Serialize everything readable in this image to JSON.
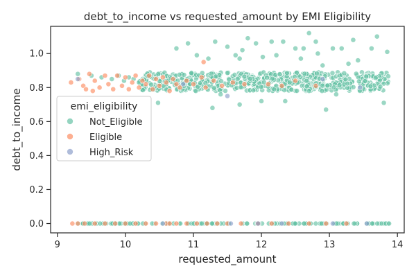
{
  "chart_data": {
    "type": "scatter",
    "title": "debt_to_income vs requested_amount by EMI Eligibility",
    "xlabel": "requested_amount",
    "ylabel": "debt_to_income",
    "xlim": [
      8.9,
      14.1
    ],
    "ylim": [
      -0.055,
      1.16
    ],
    "xticks": [
      9,
      10,
      11,
      12,
      13,
      14
    ],
    "yticks": [
      0.0,
      0.2,
      0.4,
      0.6,
      0.8,
      1.0
    ],
    "xtick_labels": [
      "9",
      "10",
      "11",
      "12",
      "13",
      "14"
    ],
    "ytick_labels": [
      "0.0",
      "0.2",
      "0.4",
      "0.6",
      "0.8",
      "1.0"
    ],
    "grid": false,
    "legend": {
      "title": "emi_eligibility",
      "position": "center-left",
      "entries": [
        {
          "label": "Not_Eligible",
          "color": "#66c2a5"
        },
        {
          "label": "Eligible",
          "color": "#fc8d62"
        },
        {
          "label": "High_Risk",
          "color": "#8da0cb"
        }
      ]
    },
    "series": [
      {
        "name": "Not_Eligible",
        "color": "#66c2a5",
        "points": [
          [
            10.75,
            1.03
          ],
          [
            10.92,
            1.06
          ],
          [
            11.05,
            0.99
          ],
          [
            11.22,
            0.97
          ],
          [
            11.32,
            1.07
          ],
          [
            11.5,
            1.04
          ],
          [
            11.62,
            0.99
          ],
          [
            11.68,
            0.97
          ],
          [
            11.72,
            1.02
          ],
          [
            11.8,
            1.09
          ],
          [
            11.92,
            1.06
          ],
          [
            12.02,
            0.98
          ],
          [
            12.15,
            1.07
          ],
          [
            12.22,
            0.99
          ],
          [
            12.32,
            1.07
          ],
          [
            12.5,
            1.03
          ],
          [
            12.58,
            0.97
          ],
          [
            12.62,
            1.03
          ],
          [
            12.7,
            1.12
          ],
          [
            12.8,
            1.07
          ],
          [
            12.83,
            1.0
          ],
          [
            12.9,
            0.93
          ],
          [
            13.05,
            1.03
          ],
          [
            13.18,
            1.03
          ],
          [
            13.28,
            0.94
          ],
          [
            13.35,
            1.08
          ],
          [
            13.42,
            0.96
          ],
          [
            13.62,
            1.03
          ],
          [
            13.7,
            1.1
          ],
          [
            13.85,
            1.01
          ],
          [
            10.48,
            0.71
          ],
          [
            11.28,
            0.68
          ],
          [
            11.68,
            0.7
          ],
          [
            12.0,
            0.72
          ],
          [
            12.35,
            0.72
          ],
          [
            12.95,
            0.67
          ],
          [
            13.8,
            0.71
          ],
          [
            11.4,
            0.76
          ],
          [
            12.7,
            0.78
          ],
          [
            13.1,
            0.76
          ],
          [
            9.3,
            0.88
          ],
          [
            9.5,
            0.87
          ],
          [
            9.65,
            0.86
          ],
          [
            9.8,
            0.85
          ],
          [
            9.9,
            0.87
          ],
          [
            9.98,
            0.84
          ],
          [
            10.05,
            0.86
          ],
          [
            10.12,
            0.85
          ],
          [
            10.2,
            0.83
          ]
        ],
        "band": {
          "xmin": 10.2,
          "xmax": 13.88,
          "ymin": 0.78,
          "ymax": 0.89,
          "count": 620
        },
        "zero_row": {
          "xmin": 9.3,
          "xmax": 13.88,
          "y": 0.0,
          "count": 150
        }
      },
      {
        "name": "Eligible",
        "color": "#fc8d62",
        "points": [
          [
            9.2,
            0.83
          ],
          [
            9.32,
            0.85
          ],
          [
            9.38,
            0.81
          ],
          [
            9.42,
            0.79
          ],
          [
            9.47,
            0.88
          ],
          [
            9.52,
            0.78
          ],
          [
            9.55,
            0.84
          ],
          [
            9.62,
            0.8
          ],
          [
            9.7,
            0.87
          ],
          [
            9.75,
            0.82
          ],
          [
            9.82,
            0.79
          ],
          [
            9.88,
            0.87
          ],
          [
            9.95,
            0.81
          ],
          [
            10.0,
            0.86
          ],
          [
            10.05,
            0.79
          ],
          [
            10.1,
            0.83
          ],
          [
            10.15,
            0.87
          ],
          [
            10.2,
            0.8
          ],
          [
            10.25,
            0.84
          ],
          [
            10.3,
            0.82
          ],
          [
            10.35,
            0.87
          ],
          [
            10.4,
            0.79
          ],
          [
            10.45,
            0.85
          ],
          [
            10.5,
            0.81
          ],
          [
            10.55,
            0.86
          ],
          [
            10.6,
            0.83
          ],
          [
            10.65,
            0.78
          ],
          [
            10.7,
            0.85
          ],
          [
            10.75,
            0.82
          ],
          [
            10.8,
            0.8
          ],
          [
            10.9,
            0.84
          ],
          [
            11.0,
            0.82
          ],
          [
            11.12,
            0.86
          ],
          [
            11.18,
            0.8
          ],
          [
            11.3,
            0.84
          ],
          [
            11.42,
            0.81
          ],
          [
            11.58,
            0.83
          ],
          [
            11.75,
            0.82
          ],
          [
            12.1,
            0.82
          ],
          [
            12.3,
            0.81
          ],
          [
            12.5,
            0.84
          ],
          [
            12.8,
            0.81
          ],
          [
            9.4,
            0.0
          ],
          [
            9.55,
            0.0
          ],
          [
            9.7,
            0.0
          ],
          [
            9.85,
            0.0
          ],
          [
            10.0,
            0.0
          ],
          [
            10.15,
            0.0
          ],
          [
            10.3,
            0.0
          ],
          [
            10.45,
            0.0
          ],
          [
            10.6,
            0.0
          ],
          [
            10.75,
            0.0
          ],
          [
            10.9,
            0.0
          ],
          [
            11.05,
            0.0
          ],
          [
            11.2,
            0.0
          ],
          [
            11.35,
            0.0
          ],
          [
            11.5,
            0.0
          ],
          [
            11.7,
            0.0
          ],
          [
            11.95,
            0.0
          ],
          [
            12.15,
            0.0
          ],
          [
            12.4,
            0.0
          ],
          [
            12.7,
            0.0
          ],
          [
            12.95,
            0.0
          ],
          [
            13.25,
            0.0
          ],
          [
            9.22,
            0.0
          ],
          [
            9.3,
            0.0
          ],
          [
            10.65,
            0.0
          ],
          [
            11.15,
            0.95
          ]
        ]
      },
      {
        "name": "High_Risk",
        "color": "#8da0cb",
        "points": [
          [
            9.3,
            0.85
          ],
          [
            10.85,
            0.82
          ],
          [
            11.5,
            0.75
          ],
          [
            11.55,
            0.0
          ],
          [
            11.95,
            0.0
          ],
          [
            12.9,
            0.85
          ],
          [
            13.05,
            0.0
          ],
          [
            13.45,
            0.8
          ],
          [
            13.55,
            0.0
          ],
          [
            10.55,
            0.0
          ],
          [
            12.3,
            0.0
          ]
        ]
      }
    ]
  }
}
